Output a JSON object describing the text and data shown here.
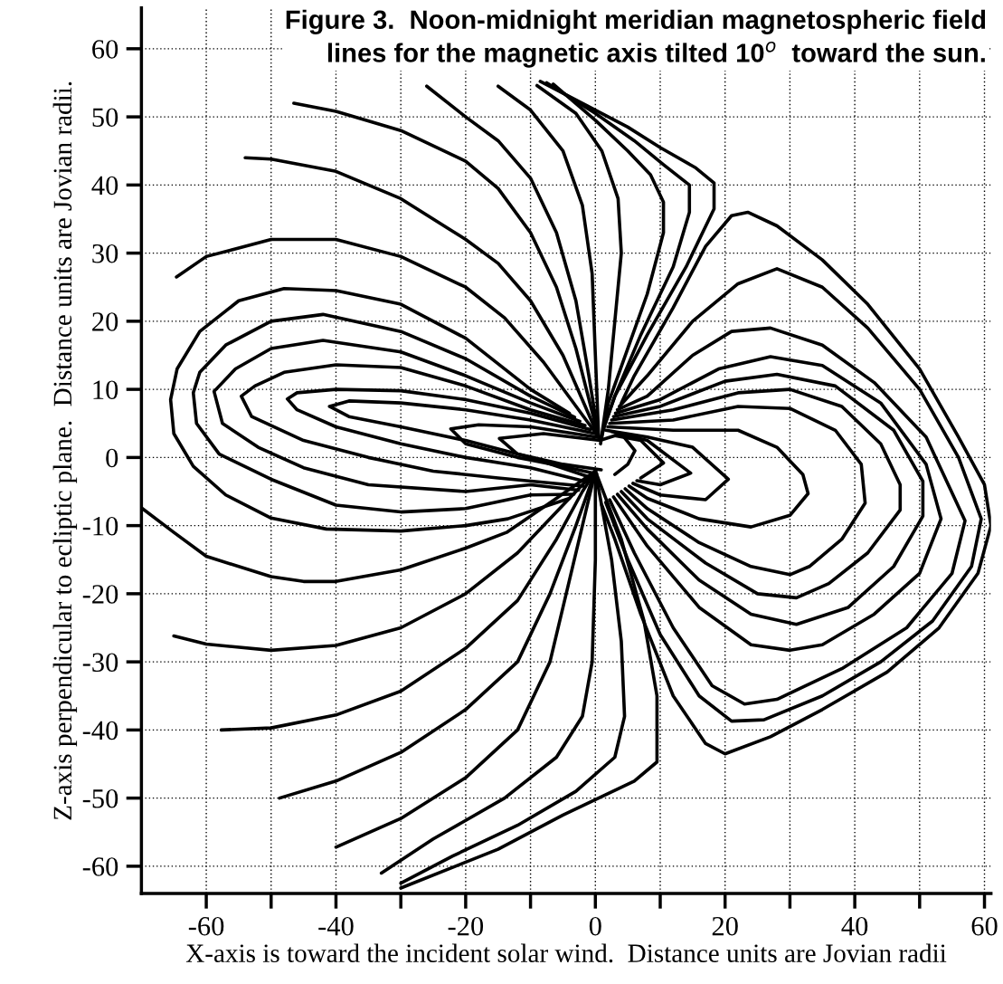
{
  "chart_data": {
    "type": "line",
    "title": "Figure 3.  Noon-midnight meridian magnetospheric field\nlines for the magnetic axis tilted 10$^{o}$  toward the sun.",
    "xlabel": "X-axis is toward the incident solar wind.  Distance units are Jovian radii",
    "ylabel": "Z-axis perpendicular to ecliptic plane.  Distance units are Jovian radii.",
    "xlim": [
      -70,
      61
    ],
    "ylim": [
      -64,
      66
    ],
    "xticks": [
      -60,
      {
        "value": -50,
        "label": null
      },
      -40,
      {
        "value": -30,
        "label": null
      },
      -20,
      {
        "value": -10,
        "label": null
      },
      0,
      {
        "value": 10,
        "label": null
      },
      20,
      {
        "value": 30,
        "label": null
      },
      40,
      {
        "value": 50,
        "label": null
      },
      60
    ],
    "yticks": [
      -60,
      -50,
      -40,
      -30,
      -20,
      -10,
      0,
      10,
      20,
      30,
      40,
      50,
      60
    ],
    "grid": true,
    "marker": "none",
    "line_style": "solid",
    "series": [
      {
        "color": "#000000",
        "x": [
          -26,
          -20,
          -15,
          -10,
          -6,
          -3,
          -1,
          0.5
        ],
        "values": [
          54.5,
          50,
          46.5,
          41,
          33,
          23,
          12,
          3
        ]
      },
      {
        "color": "#000000",
        "x": [
          -46.5,
          -40,
          -30,
          -20,
          -15,
          -10,
          -6,
          -3,
          0.5
        ],
        "values": [
          52,
          50.8,
          48,
          43.5,
          39.5,
          33,
          25,
          16,
          3
        ]
      },
      {
        "color": "#000000",
        "x": [
          -54,
          -50,
          -40,
          -30,
          -20,
          -15,
          -10,
          -5,
          0.5
        ],
        "values": [
          44,
          43.8,
          42,
          38,
          32,
          28.5,
          23,
          15,
          3
        ]
      },
      {
        "color": "#000000",
        "x": [
          -64.6,
          -60,
          -50,
          -40,
          -30,
          -20,
          -14,
          -8,
          0.5
        ],
        "values": [
          26.5,
          29.5,
          32,
          32,
          29.5,
          25,
          20.5,
          14,
          3
        ]
      },
      {
        "color": "#000000",
        "x": [
          -15,
          -10,
          -5,
          -2,
          -0.5,
          0,
          0.5
        ],
        "values": [
          54.5,
          51,
          45,
          37,
          27,
          15,
          3
        ]
      },
      {
        "color": "#000000",
        "x": [
          -8.5,
          -2,
          5,
          10,
          15.5,
          18.3,
          18.3,
          14,
          8,
          3,
          1.5
        ],
        "values": [
          55.2,
          52,
          48.5,
          45.5,
          42.5,
          40.3,
          36.5,
          28,
          18,
          9,
          5
        ]
      },
      {
        "color": "#000000",
        "x": [
          -7.5,
          0,
          6,
          10.5,
          14.5,
          14.5,
          12,
          7,
          3,
          1.2
        ],
        "values": [
          55,
          50.5,
          46.5,
          43,
          40,
          36,
          28,
          18,
          9,
          4
        ]
      },
      {
        "color": "#000000",
        "x": [
          -6.5,
          0,
          5,
          8.5,
          10.5,
          10.5,
          8,
          5,
          2,
          1
        ],
        "values": [
          54.8,
          49.5,
          45,
          41.5,
          37.5,
          33,
          24,
          16,
          8,
          3
        ]
      },
      {
        "color": "#000000",
        "x": [
          -9,
          -3,
          1,
          3.5,
          4,
          3,
          2,
          0.8
        ],
        "values": [
          54.6,
          50.5,
          45,
          38,
          30,
          20,
          10,
          2
        ]
      },
      {
        "color": "#000000",
        "x": [
          -4,
          -10,
          -20,
          -30,
          -40,
          -48,
          -55,
          -61,
          -64.5,
          -65.5,
          -65,
          -62,
          -57,
          -50,
          -41.5,
          -30,
          -20,
          -13.5,
          -4
        ],
        "values": [
          6.5,
          10,
          17.5,
          22.5,
          24.5,
          24.8,
          23,
          18.5,
          13,
          8.5,
          3.5,
          -1.3,
          -5.5,
          -8.9,
          -10.5,
          -10.8,
          -10,
          -9,
          -6
        ]
      },
      {
        "color": "#000000",
        "x": [
          -3.2,
          -10,
          -20,
          -30,
          -42,
          -50,
          -57,
          -61,
          -62,
          -61.5,
          -58,
          -50,
          -40,
          -30,
          -20,
          -10,
          -3.3
        ],
        "values": [
          5.9,
          9,
          14.5,
          18.5,
          21,
          20,
          16.5,
          12.5,
          9.5,
          5,
          0.5,
          -3.2,
          -7,
          -8,
          -7.5,
          -5.5,
          -5.4
        ]
      },
      {
        "color": "#000000",
        "x": [
          -2.4,
          -10,
          -20,
          -30,
          -42,
          -50,
          -55.5,
          -58.8,
          -57.5,
          -52,
          -45,
          -35,
          -20,
          -10,
          -2.6
        ],
        "values": [
          5.3,
          8,
          12,
          15.5,
          17.2,
          16,
          13,
          9.7,
          5,
          1.5,
          -1.5,
          -4,
          -5,
          -4,
          -4.8
        ]
      },
      {
        "color": "#000000",
        "x": [
          -1.6,
          -10,
          -20,
          -30,
          -40,
          -48,
          -52.5,
          -54.6,
          -53,
          -45,
          -35,
          -25,
          -15,
          -1.9
        ],
        "values": [
          4.7,
          7,
          10.5,
          13.2,
          13.6,
          12.5,
          10.5,
          9,
          6,
          2.5,
          0,
          -2,
          -3,
          -4.2
        ]
      },
      {
        "color": "#000000",
        "x": [
          -0.8,
          -10,
          -20,
          -30,
          -40,
          -46,
          -47.5,
          -46,
          -40,
          -30,
          -20,
          -10,
          -1.2
        ],
        "values": [
          4.1,
          6.5,
          8.5,
          9.8,
          10,
          9.5,
          8.6,
          7,
          4.5,
          2,
          0,
          -1.5,
          -3.6
        ]
      },
      {
        "color": "#000000",
        "x": [
          0,
          -10,
          -20,
          -30,
          -38,
          -41,
          -38,
          -30,
          -20,
          -10,
          -0.5
        ],
        "values": [
          3.5,
          5.5,
          7,
          8,
          8.3,
          7.5,
          6,
          4.5,
          2.5,
          0,
          -3
        ]
      },
      {
        "color": "#000000",
        "x": [
          0.8,
          -10,
          -18,
          -22.3,
          -20,
          -12,
          -5,
          0.2
        ],
        "values": [
          2.9,
          4.5,
          4.8,
          4.2,
          2,
          0,
          -1.3,
          -2.4
        ]
      },
      {
        "color": "#000000",
        "x": [
          3,
          5,
          6.1,
          4,
          0.7,
          -8,
          -14.8,
          -12,
          -5,
          0.9
        ],
        "values": [
          -2.5,
          -1,
          1,
          3.5,
          2.5,
          3.5,
          2.8,
          0.5,
          -1,
          -1.8
        ]
      },
      {
        "color": "#000000",
        "x": [
          -70,
          -65,
          -60,
          -50,
          -45,
          -40,
          -30,
          -20,
          -13.7,
          -6,
          0
        ],
        "values": [
          -7.4,
          -11,
          -14.5,
          -17.5,
          -18.2,
          -18.2,
          -16.5,
          -13.3,
          -11,
          -6,
          -2
        ]
      },
      {
        "color": "#000000",
        "x": [
          -65,
          -60,
          -50,
          -40,
          -30,
          -20,
          -12,
          -5,
          0
        ],
        "values": [
          -26.2,
          -27.4,
          -28.3,
          -27.6,
          -25,
          -20,
          -14,
          -7,
          -2
        ]
      },
      {
        "color": "#000000",
        "x": [
          -57.7,
          -50,
          -40,
          -30,
          -20,
          -12,
          -6,
          -2,
          0
        ],
        "values": [
          -40,
          -39.7,
          -37.8,
          -34.3,
          -28,
          -21,
          -12,
          -5,
          -2
        ]
      },
      {
        "color": "#000000",
        "x": [
          -48.7,
          -40,
          -30,
          -20,
          -12,
          -7,
          -3,
          0
        ],
        "values": [
          -50,
          -47.5,
          -43.3,
          -37,
          -30,
          -20,
          -10,
          -2
        ]
      },
      {
        "color": "#000000",
        "x": [
          -40,
          -30,
          -20,
          -12,
          -7,
          -4,
          -1.5,
          0
        ],
        "values": [
          -57.2,
          -53,
          -47,
          -40,
          -30,
          -18,
          -8,
          -2
        ]
      },
      {
        "color": "#000000",
        "x": [
          0,
          0,
          -0.5,
          -2,
          -6,
          -14,
          -25,
          -33
        ],
        "values": [
          -2,
          -15,
          -30,
          -38,
          -44,
          -50,
          -56,
          -61
        ]
      },
      {
        "color": "#000000",
        "x": [
          0,
          2.5,
          4,
          4.5,
          3,
          -3,
          -12,
          -22,
          -30
        ],
        "values": [
          -2,
          -15,
          -27,
          -38,
          -44,
          -49,
          -54,
          -58.5,
          -62.5
        ]
      },
      {
        "color": "#000000",
        "x": [
          0,
          4,
          7.5,
          9.5,
          9.5,
          6,
          -5,
          -15,
          -30
        ],
        "values": [
          -2,
          -12,
          -24,
          -35,
          -44.7,
          -47.5,
          -52.5,
          -57.5,
          -63.2
        ]
      },
      {
        "color": "#000000",
        "x": [
          4,
          6,
          12,
          17,
          21,
          23.5,
          28,
          35,
          42,
          50,
          56,
          60,
          61,
          59,
          53,
          45,
          35,
          27,
          20,
          17,
          12,
          7,
          3,
          1
        ],
        "values": [
          8,
          12,
          22,
          31,
          35.5,
          36,
          34,
          29,
          22.5,
          13,
          3,
          -4,
          -10,
          -17,
          -25,
          -31.5,
          -37,
          -41,
          -43.5,
          -42,
          -35,
          -23,
          -12,
          -7
        ]
      },
      {
        "color": "#000000",
        "x": [
          3.7,
          8,
          15,
          22,
          28,
          35,
          42,
          50,
          56,
          59.5,
          58,
          52,
          44,
          35,
          26,
          21,
          16,
          10,
          5,
          1.6
        ],
        "values": [
          7.5,
          12,
          20,
          25.5,
          27.7,
          25,
          19,
          10,
          0,
          -9,
          -16,
          -24,
          -30,
          -35,
          -38.5,
          -38.7,
          -35,
          -26,
          -15,
          -6.6
        ]
      },
      {
        "color": "#000000",
        "x": [
          3.4,
          8,
          15,
          21,
          27,
          35,
          43,
          51,
          57,
          55,
          48,
          38,
          28,
          23,
          18,
          12,
          6,
          2.2
        ],
        "values": [
          7,
          9,
          15,
          18.5,
          19,
          16.5,
          11,
          3,
          -9.3,
          -17,
          -25,
          -31,
          -35.5,
          -36.2,
          -33.5,
          -25,
          -14,
          -6.2
        ]
      },
      {
        "color": "#000000",
        "x": [
          3.1,
          10,
          19,
          27,
          35,
          44,
          51,
          53.3,
          50,
          43,
          35,
          30,
          24,
          16,
          8,
          2.8
        ],
        "values": [
          6.5,
          8.5,
          13,
          14.8,
          13.5,
          8,
          -1,
          -9,
          -17,
          -23,
          -27.5,
          -28.3,
          -27.5,
          -22,
          -13,
          -5.8
        ]
      },
      {
        "color": "#000000",
        "x": [
          2.8,
          10,
          20,
          28,
          37,
          46,
          50.5,
          50.5,
          46,
          39,
          31,
          24,
          16,
          8,
          3.4
        ],
        "values": [
          6,
          7.5,
          11.2,
          12.2,
          10.5,
          4,
          -3.5,
          -8.6,
          -16,
          -22,
          -24.5,
          -23,
          -18,
          -10.5,
          -5.4
        ]
      },
      {
        "color": "#000000",
        "x": [
          2.5,
          12,
          22,
          30,
          38,
          44,
          47,
          47,
          42,
          36,
          31,
          25,
          17,
          8,
          4
        ],
        "values": [
          5.5,
          7,
          9.5,
          10,
          7.5,
          2,
          -4,
          -7.7,
          -14,
          -18.5,
          -20.6,
          -20,
          -15.5,
          -9,
          -5
        ]
      },
      {
        "color": "#000000",
        "x": [
          2.2,
          12,
          22,
          30,
          37,
          41,
          41.6,
          38,
          33,
          30,
          24,
          16,
          8,
          4.6
        ],
        "values": [
          5,
          5.5,
          7.5,
          7.2,
          4,
          -1,
          -6.7,
          -12,
          -16,
          -17.2,
          -16,
          -12.5,
          -7.5,
          -4.6
        ]
      },
      {
        "color": "#000000",
        "x": [
          1.9,
          12,
          22,
          28,
          32,
          32.8,
          30,
          24,
          16,
          8,
          5.2
        ],
        "values": [
          4.5,
          4,
          4,
          1.5,
          -2.5,
          -5.3,
          -8.5,
          -10.2,
          -9,
          -6,
          -4.2
        ]
      },
      {
        "color": "#000000",
        "x": [
          1.6,
          8,
          15,
          20.5,
          17,
          10,
          5.8
        ],
        "values": [
          4,
          3,
          1.5,
          -3.2,
          -6.2,
          -5.5,
          -3.8
        ]
      },
      {
        "color": "#000000",
        "x": [
          2.5,
          8,
          14.7,
          10,
          6.4
        ],
        "values": [
          3.8,
          2.5,
          -2.3,
          -4,
          -3.4
        ]
      },
      {
        "color": "#000000",
        "x": [
          3,
          7,
          10.5,
          7
        ],
        "values": [
          3.2,
          2.5,
          -0.8,
          -3
        ]
      }
    ]
  }
}
